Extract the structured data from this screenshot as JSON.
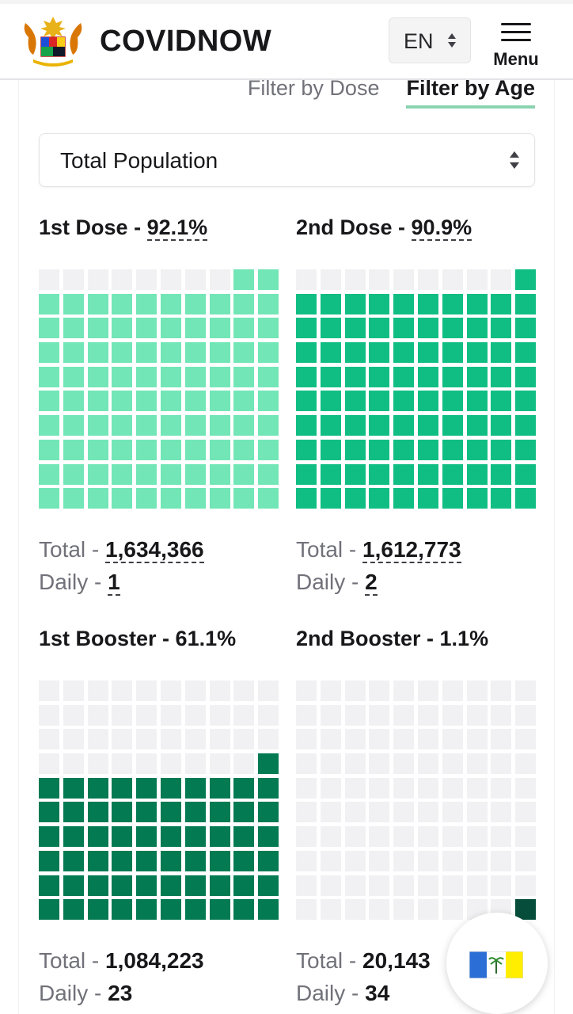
{
  "header": {
    "brand": "COVIDNOW",
    "language": "EN",
    "menu_label": "Menu",
    "logo_icon": "malaysia-coat-of-arms-icon"
  },
  "filters": {
    "dose_label": "Filter by Dose",
    "age_label": "Filter by Age",
    "active": "Filter by Age"
  },
  "population_select": {
    "value": "Total Population"
  },
  "colors": {
    "first_dose": "#72e6b6",
    "second_dose": "#10be83",
    "first_booster": "#037a52",
    "second_booster": "#064e3b",
    "empty": "#f1f1f3"
  },
  "panels": [
    {
      "title": "1st Dose",
      "percent": "92.1%",
      "percent_value": 92.1,
      "total_label": "Total",
      "total": "1,634,366",
      "daily_label": "Daily",
      "daily": "1"
    },
    {
      "title": "2nd Dose",
      "percent": "90.9%",
      "percent_value": 90.9,
      "total_label": "Total",
      "total": "1,612,773",
      "daily_label": "Daily",
      "daily": "2"
    },
    {
      "title": "1st Booster",
      "percent": "61.1%",
      "percent_value": 61.1,
      "total_label": "Total",
      "total": "1,084,223",
      "daily_label": "Daily",
      "daily": "23"
    },
    {
      "title": "2nd Booster",
      "percent": "1.1%",
      "percent_value": 1.1,
      "total_label": "Total",
      "total": "20,143",
      "daily_label": "Daily",
      "daily": "34"
    }
  ],
  "fab": {
    "icon": "penang-state-flag-icon"
  }
}
